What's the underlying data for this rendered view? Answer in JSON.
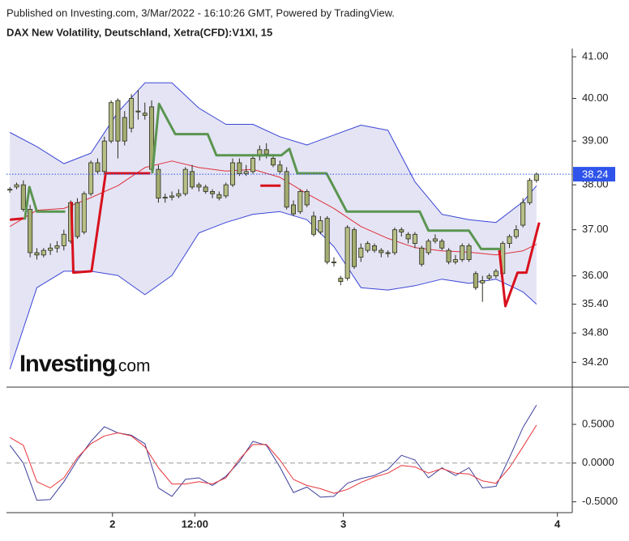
{
  "chart_data": {
    "type": "candlestick",
    "source": "Published on Investing.com, 3/Mar/2022 - 16:10:26 GMT, Powered by TradingView.",
    "title": "DAX New Volatility, Deutschland, Xetra(CFD):V1XI, 15",
    "log_scale": true,
    "xlim": [
      -0.5,
      83.3
    ],
    "xticks": [
      {
        "value": 15.2,
        "label": "2"
      },
      {
        "value": 27.4,
        "label": "12:00"
      },
      {
        "value": 49.4,
        "label": "3"
      },
      {
        "value": 81.1,
        "label": "4"
      }
    ],
    "ylim": [
      33.7,
      41.2
    ],
    "yticks": [
      {
        "value": 41,
        "label": "41.00"
      },
      {
        "value": 40,
        "label": "40.00"
      },
      {
        "value": 39,
        "label": "39.00"
      },
      {
        "value": 38,
        "label": "38.00"
      },
      {
        "value": 37,
        "label": "37.00"
      },
      {
        "value": 36,
        "label": "36.00"
      },
      {
        "value": 35.4,
        "label": "35.40"
      },
      {
        "value": 34.8,
        "label": "34.80"
      },
      {
        "value": 34.2,
        "label": "34.20"
      }
    ],
    "last_value": 38.24,
    "last_value_color": "#2f54eb",
    "candles": {
      "up_color": "#b7bf86",
      "down_color": "#a4ad70",
      "ohlc": [
        [
          37.88,
          37.95,
          37.82,
          37.9
        ],
        [
          37.95,
          38.05,
          37.9,
          38.0
        ],
        [
          38.0,
          38.1,
          37.4,
          37.45
        ],
        [
          37.45,
          37.55,
          36.4,
          36.5
        ],
        [
          36.5,
          36.6,
          36.35,
          36.45
        ],
        [
          36.45,
          36.6,
          36.4,
          36.55
        ],
        [
          36.55,
          36.7,
          36.45,
          36.6
        ],
        [
          36.6,
          36.75,
          36.5,
          36.65
        ],
        [
          36.65,
          37.0,
          36.55,
          36.9
        ],
        [
          36.75,
          37.65,
          36.7,
          37.6
        ],
        [
          37.6,
          37.7,
          36.8,
          36.85
        ],
        [
          36.95,
          37.85,
          36.9,
          37.8
        ],
        [
          37.8,
          38.55,
          37.75,
          38.5
        ],
        [
          38.5,
          38.6,
          38.25,
          38.3
        ],
        [
          38.3,
          39.1,
          38.25,
          39.0
        ],
        [
          39.0,
          39.95,
          38.95,
          39.9
        ],
        [
          39.95,
          40.0,
          38.6,
          39.0
        ],
        [
          39.55,
          39.7,
          38.9,
          39.0
        ],
        [
          39.3,
          40.1,
          39.2,
          40.0
        ],
        [
          39.7,
          40.2,
          39.5,
          39.68
        ],
        [
          39.65,
          39.9,
          39.5,
          39.6
        ],
        [
          39.8,
          39.95,
          38.3,
          38.35
        ],
        [
          38.35,
          38.45,
          37.6,
          37.7
        ],
        [
          37.7,
          37.8,
          37.6,
          37.72
        ],
        [
          37.72,
          37.85,
          37.65,
          37.75
        ],
        [
          37.75,
          37.9,
          37.7,
          37.8
        ],
        [
          37.8,
          38.4,
          37.75,
          38.35
        ],
        [
          38.3,
          38.45,
          37.9,
          37.95
        ],
        [
          38.0,
          38.05,
          37.85,
          37.95
        ],
        [
          37.95,
          38.0,
          37.8,
          37.85
        ],
        [
          37.85,
          37.9,
          37.7,
          37.8
        ],
        [
          37.78,
          37.85,
          37.65,
          37.7
        ],
        [
          37.75,
          38.05,
          37.7,
          38.0
        ],
        [
          38.0,
          38.6,
          37.95,
          38.5
        ],
        [
          38.5,
          38.6,
          38.2,
          38.25
        ],
        [
          38.25,
          38.45,
          38.2,
          38.3
        ],
        [
          38.3,
          38.65,
          38.25,
          38.6
        ],
        [
          38.65,
          38.9,
          38.55,
          38.8
        ],
        [
          38.8,
          38.95,
          38.6,
          38.7
        ],
        [
          38.6,
          38.7,
          38.4,
          38.45
        ],
        [
          38.45,
          38.55,
          38.25,
          38.3
        ],
        [
          38.3,
          38.4,
          37.45,
          37.5
        ],
        [
          37.55,
          37.65,
          37.3,
          37.35
        ],
        [
          37.4,
          37.9,
          37.35,
          37.85
        ],
        [
          37.85,
          37.9,
          37.5,
          37.55
        ],
        [
          37.3,
          37.4,
          36.85,
          36.9
        ],
        [
          36.95,
          37.3,
          36.9,
          37.2
        ],
        [
          37.25,
          37.3,
          36.25,
          36.3
        ],
        [
          36.3,
          36.4,
          36.2,
          36.3
        ],
        [
          35.95,
          36.0,
          35.8,
          35.88
        ],
        [
          35.95,
          37.1,
          35.9,
          37.05
        ],
        [
          37.0,
          37.05,
          36.15,
          36.2
        ],
        [
          36.4,
          36.7,
          36.3,
          36.6
        ],
        [
          36.55,
          36.75,
          36.5,
          36.7
        ],
        [
          36.65,
          36.7,
          36.5,
          36.55
        ],
        [
          36.55,
          36.6,
          36.4,
          36.5
        ],
        [
          36.5,
          36.55,
          36.4,
          36.48
        ],
        [
          36.5,
          37.05,
          36.45,
          37.0
        ],
        [
          37.0,
          37.05,
          36.85,
          36.95
        ],
        [
          36.9,
          36.95,
          36.7,
          36.8
        ],
        [
          36.7,
          36.95,
          36.6,
          36.9
        ],
        [
          36.6,
          36.65,
          36.2,
          36.25
        ],
        [
          36.5,
          36.8,
          36.45,
          36.75
        ],
        [
          36.75,
          36.9,
          36.7,
          36.8
        ],
        [
          36.75,
          36.8,
          36.55,
          36.6
        ],
        [
          36.55,
          36.6,
          36.25,
          36.3
        ],
        [
          36.3,
          36.45,
          36.25,
          36.35
        ],
        [
          36.35,
          36.7,
          36.3,
          36.65
        ],
        [
          36.65,
          36.7,
          36.3,
          36.35
        ],
        [
          36.05,
          36.1,
          35.7,
          35.75
        ],
        [
          35.85,
          36.0,
          35.45,
          35.9
        ],
        [
          35.95,
          36.05,
          35.9,
          36.0
        ],
        [
          36.0,
          36.15,
          35.95,
          36.1
        ],
        [
          36.05,
          36.75,
          36.0,
          36.7
        ],
        [
          36.7,
          36.9,
          36.6,
          36.85
        ],
        [
          36.85,
          37.1,
          36.8,
          37.0
        ],
        [
          37.1,
          37.7,
          37.05,
          37.6
        ],
        [
          37.6,
          38.15,
          37.55,
          38.1
        ],
        [
          38.1,
          38.28,
          38.05,
          38.24
        ]
      ]
    },
    "bands": {
      "color": "#3b46d6",
      "middle_color": "#e0303a",
      "fill": "#e4e4f4",
      "x": [
        0,
        4,
        8,
        12,
        16,
        20,
        24,
        28,
        32,
        36,
        40,
        44,
        48,
        52,
        56,
        60,
        64,
        68,
        72,
        76,
        78
      ],
      "upper": [
        39.2,
        38.87,
        38.48,
        38.72,
        39.67,
        40.37,
        40.37,
        39.77,
        39.39,
        39.39,
        39.1,
        38.91,
        39.14,
        39.37,
        39.25,
        38.07,
        37.34,
        37.22,
        37.16,
        37.62,
        37.98
      ],
      "middle": [
        37.07,
        37.43,
        37.47,
        37.71,
        37.98,
        38.39,
        38.54,
        38.39,
        38.31,
        38.35,
        38.17,
        37.8,
        37.47,
        37.07,
        36.81,
        36.61,
        36.54,
        36.51,
        36.45,
        36.54,
        36.68
      ],
      "lower": [
        34.06,
        35.75,
        36.1,
        36.1,
        36.01,
        35.6,
        36.01,
        36.93,
        37.16,
        37.34,
        37.4,
        37.22,
        36.63,
        35.75,
        35.7,
        35.79,
        35.93,
        35.84,
        35.93,
        35.66,
        35.4
      ]
    },
    "supertrend": [
      {
        "color": "#d8101c",
        "x": [
          0,
          2.0,
          null,
          9.1,
          9.4,
          12.1,
          14.2,
          20.8,
          null,
          37.1,
          40.1,
          null,
          72.5,
          73.4,
          75.2,
          76.5,
          78.4
        ],
        "values": [
          37.22,
          37.25,
          null,
          37.62,
          36.07,
          36.1,
          38.26,
          38.26,
          null,
          37.98,
          37.98,
          null,
          36.55,
          35.36,
          36.07,
          36.07,
          37.16
        ]
      },
      {
        "color": "#5b9550",
        "x": [
          2.2,
          2.9,
          4.0,
          8.2,
          null,
          21.1,
          22.1,
          24.5,
          29.3,
          30.6,
          40.2,
          41.4,
          42.6,
          46.9,
          49.9,
          60.7,
          62.0,
          68.0,
          69.8,
          72.8
        ],
        "values": [
          37.22,
          37.95,
          37.4,
          37.4,
          null,
          38.26,
          39.87,
          39.16,
          39.16,
          38.67,
          38.67,
          38.82,
          38.26,
          38.26,
          37.4,
          37.4,
          36.98,
          36.98,
          36.58,
          36.58
        ]
      }
    ],
    "oscillator": {
      "ylim": [
        -0.64,
        0.96
      ],
      "zero_line": true,
      "yticks": [
        {
          "value": 0.5,
          "label": "0.5000"
        },
        {
          "value": 0,
          "label": "0.0000"
        },
        {
          "value": -0.5,
          "label": "-0.5000"
        }
      ],
      "x": [
        0,
        2,
        4,
        6,
        8,
        10,
        12,
        14,
        16,
        18,
        20,
        22,
        24,
        26,
        28,
        30,
        32,
        34,
        36,
        38,
        40,
        42,
        44,
        46,
        48,
        50,
        52,
        54,
        56,
        58,
        60,
        62,
        64,
        66,
        68,
        70,
        72,
        74,
        76,
        78
      ],
      "series": [
        {
          "color": "#3d3f9c",
          "values": [
            0.23,
            0,
            -0.48,
            -0.47,
            -0.24,
            0.04,
            0.28,
            0.47,
            0.39,
            0.36,
            0.25,
            -0.32,
            -0.43,
            -0.21,
            -0.19,
            -0.29,
            -0.17,
            0.02,
            0.28,
            0.23,
            -0.05,
            -0.38,
            -0.31,
            -0.44,
            -0.43,
            -0.26,
            -0.2,
            -0.16,
            -0.08,
            0.1,
            0.04,
            -0.19,
            -0.06,
            -0.16,
            -0.06,
            -0.32,
            -0.3,
            0.07,
            0.46,
            0.75
          ]
        },
        {
          "color": "#e8353b",
          "values": [
            0.33,
            0.23,
            -0.24,
            -0.32,
            -0.19,
            0.07,
            0.25,
            0.35,
            0.39,
            0.35,
            0.21,
            -0.06,
            -0.27,
            -0.27,
            -0.24,
            -0.27,
            -0.19,
            0.05,
            0.24,
            0.24,
            0.04,
            -0.21,
            -0.29,
            -0.33,
            -0.39,
            -0.34,
            -0.25,
            -0.18,
            -0.13,
            -0.03,
            -0.05,
            -0.13,
            -0.07,
            -0.13,
            -0.14,
            -0.23,
            -0.26,
            -0.06,
            0.21,
            0.49
          ]
        }
      ]
    },
    "watermark": {
      "brand": "Investing",
      "suffix": ".com"
    }
  }
}
